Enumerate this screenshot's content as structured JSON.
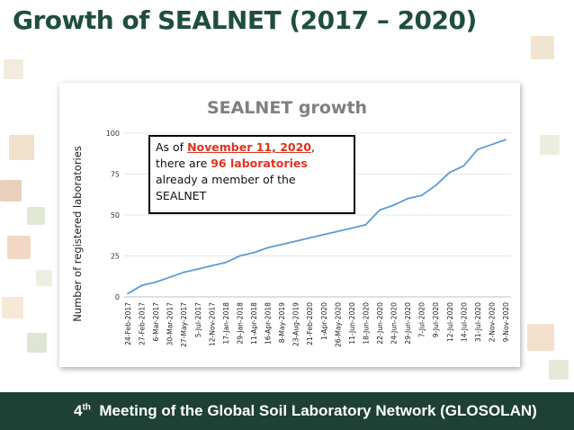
{
  "slide": {
    "title": "Growth of SEALNET (2017 – 2020)",
    "footer_ordinal": "4",
    "footer_suffix": "th",
    "footer_text": "Meeting of the Global Soil Laboratory Network (GLOSOLAN)"
  },
  "callout": {
    "line1_prefix": "As of ",
    "line1_date": "November 11, 2020",
    "line1_suffix": ",",
    "line2_prefix": "there are ",
    "line2_count": "96 laboratories",
    "line3": "already a member of the",
    "line4": "SEALNET"
  },
  "colors": {
    "title": "#1f4e3d",
    "footer_bg": "#1e4035",
    "line": "#5b9bd5",
    "highlight": "#e0331f"
  },
  "chart_data": {
    "type": "line",
    "title": "SEALNET growth",
    "xlabel": "",
    "ylabel": "Number of registered laboratories",
    "ylim": [
      0,
      100
    ],
    "yticks": [
      0,
      25,
      50,
      75,
      100
    ],
    "grid": true,
    "categories": [
      "24-Feb-2017",
      "27-Feb-2017",
      "6-Mar-2017",
      "30-Mar-2017",
      "27-May-2017",
      "5-Jul-2017",
      "12-Nov-2017",
      "17-Jan-2018",
      "29-Jan-2018",
      "11-Apr-2018",
      "16-Apr-2018",
      "8-May-2019",
      "23-Aug-2019",
      "21-Feb-2020",
      "1-Apr-2020",
      "26-May-2020",
      "11-Jun-2020",
      "18-Jun-2020",
      "22-Jun-2020",
      "24-Jun-2020",
      "29-Jun-2020",
      "7-Jul-2020",
      "9-Jul-2020",
      "12-Jul-2020",
      "14-Jul-2020",
      "31-Jul-2020",
      "2-Nov-2020",
      "9-Nov-2020"
    ],
    "series": [
      {
        "values": [
          2,
          7,
          9,
          12,
          15,
          17,
          19,
          21,
          25,
          27,
          30,
          32,
          34,
          36,
          38,
          40,
          42,
          44,
          53,
          56,
          60,
          62,
          68,
          76,
          80,
          90,
          93,
          96
        ]
      }
    ]
  }
}
